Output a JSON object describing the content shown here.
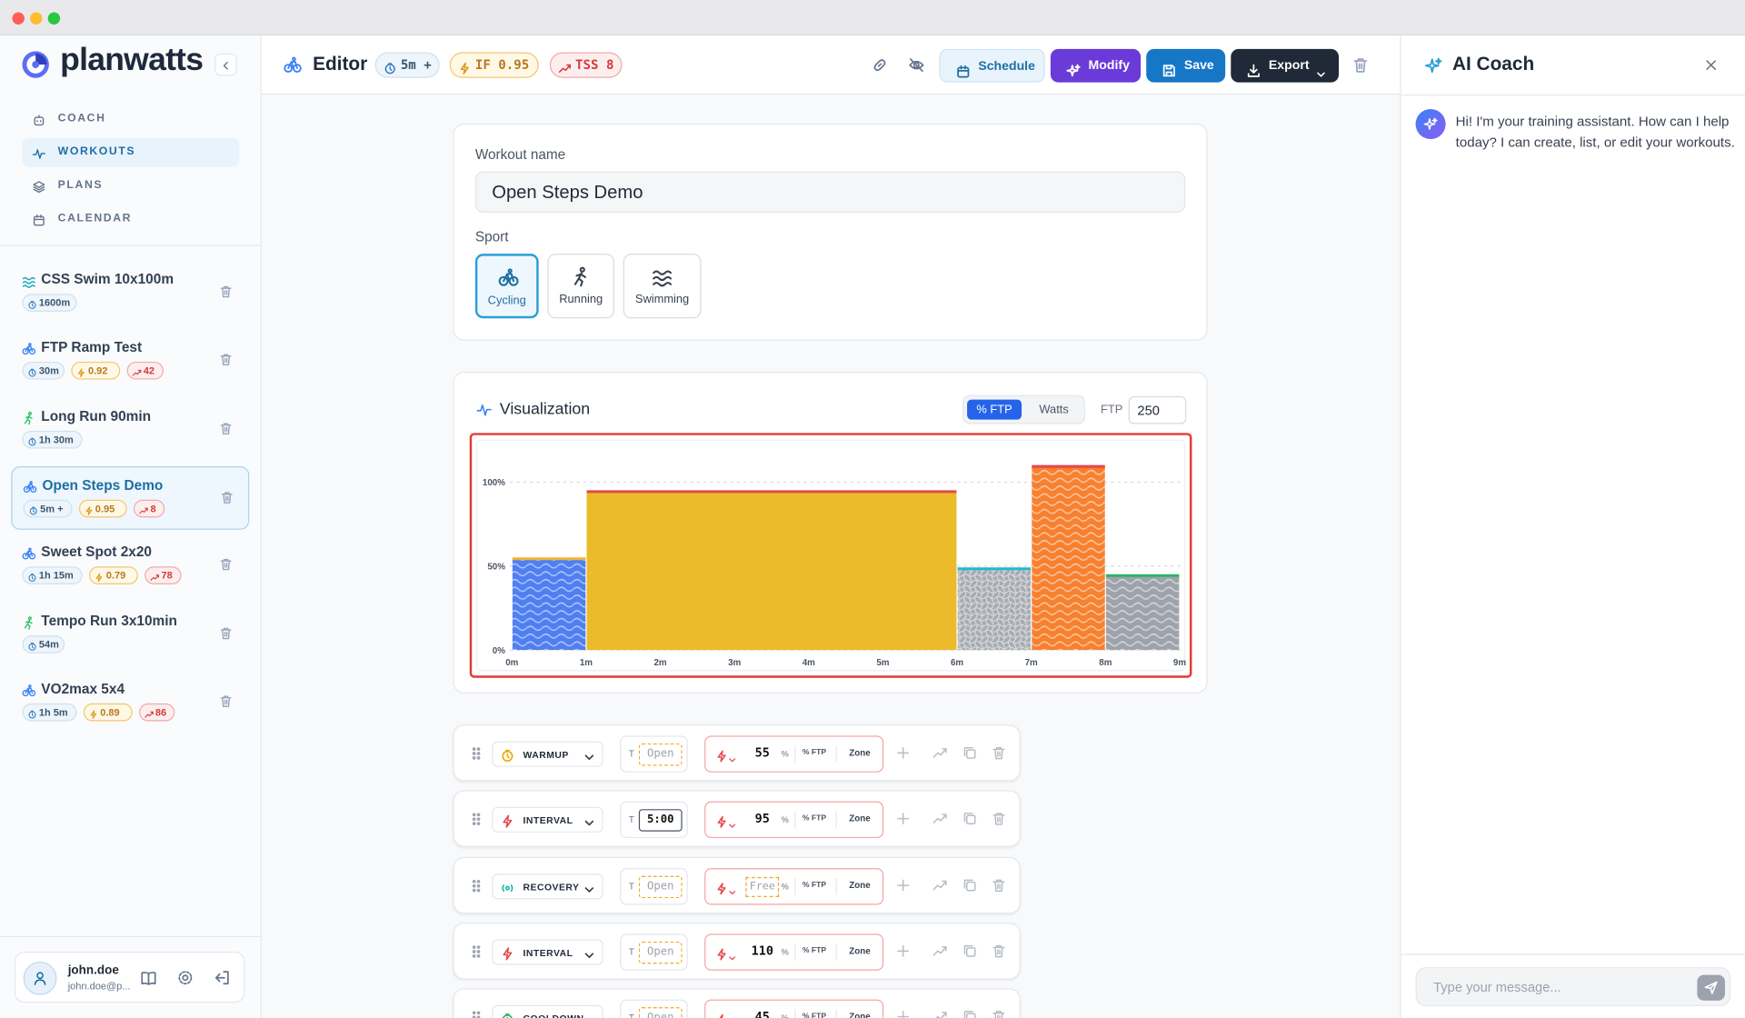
{
  "sidebar": {
    "brand": "planwatts",
    "nav": [
      {
        "label": "COACH"
      },
      {
        "label": "WORKOUTS",
        "active": true
      },
      {
        "label": "PLANS"
      },
      {
        "label": "CALENDAR"
      }
    ],
    "workouts": [
      {
        "name": "CSS Swim 10x100m",
        "sport": "swimming",
        "badges": [
          {
            "kind": "duration",
            "text": "1600m"
          }
        ]
      },
      {
        "name": "FTP Ramp Test",
        "sport": "cycling",
        "badges": [
          {
            "kind": "duration",
            "text": "30m"
          },
          {
            "kind": "if",
            "text": "0.92"
          },
          {
            "kind": "tss",
            "text": "42"
          }
        ]
      },
      {
        "name": "Long Run 90min",
        "sport": "running",
        "badges": [
          {
            "kind": "duration",
            "text": "1h 30m"
          }
        ]
      },
      {
        "name": "Open Steps Demo",
        "sport": "cycling",
        "selected": true,
        "badges": [
          {
            "kind": "duration",
            "text": "5m +"
          },
          {
            "kind": "if",
            "text": "0.95"
          },
          {
            "kind": "tss",
            "text": "8"
          }
        ]
      },
      {
        "name": "Sweet Spot 2x20",
        "sport": "cycling",
        "badges": [
          {
            "kind": "duration",
            "text": "1h 15m"
          },
          {
            "kind": "if",
            "text": "0.79"
          },
          {
            "kind": "tss",
            "text": "78"
          }
        ]
      },
      {
        "name": "Tempo Run 3x10min",
        "sport": "running",
        "badges": [
          {
            "kind": "duration",
            "text": "54m"
          }
        ]
      },
      {
        "name": "VO2max 5x4",
        "sport": "cycling",
        "badges": [
          {
            "kind": "duration",
            "text": "1h 5m"
          },
          {
            "kind": "if",
            "text": "0.89"
          },
          {
            "kind": "tss",
            "text": "86"
          }
        ]
      }
    ],
    "user": {
      "name": "john.doe",
      "email": "john.doe@p..."
    }
  },
  "header": {
    "title": "Editor",
    "badges": [
      {
        "kind": "duration",
        "text": "5m +"
      },
      {
        "kind": "if",
        "text": "IF 0.95"
      },
      {
        "kind": "tss",
        "text": "TSS 8"
      }
    ],
    "buttons": [
      "Schedule",
      "Modify",
      "Save",
      "Export"
    ]
  },
  "form": {
    "name_label": "Workout name",
    "name_value": "Open Steps Demo",
    "sport_label": "Sport",
    "sports": [
      {
        "label": "Cycling",
        "selected": true
      },
      {
        "label": "Running"
      },
      {
        "label": "Swimming"
      }
    ]
  },
  "visualization": {
    "title": "Visualization",
    "modes": [
      {
        "label": "% FTP",
        "active": true
      },
      {
        "label": "Watts"
      }
    ],
    "ftp_label": "FTP",
    "ftp_value": 250,
    "xlim": [
      0,
      9
    ],
    "xticks": [
      {
        "value": 0,
        "label": "0m"
      },
      {
        "value": 1,
        "label": "1m"
      },
      {
        "value": 2,
        "label": "2m"
      },
      {
        "value": 3,
        "label": "3m"
      },
      {
        "value": 4,
        "label": "4m"
      },
      {
        "value": 5,
        "label": "5m"
      },
      {
        "value": 6,
        "label": "6m"
      },
      {
        "value": 7,
        "label": "7m"
      },
      {
        "value": 8,
        "label": "8m"
      },
      {
        "value": 9,
        "label": "9m"
      }
    ],
    "ylim": [
      0,
      124
    ],
    "yticks": [
      {
        "value": 0,
        "label": "0%"
      },
      {
        "value": 50,
        "label": "50%"
      },
      {
        "value": 100,
        "label": "100%"
      }
    ],
    "bars": [
      {
        "start": 0,
        "end": 1,
        "value": 55,
        "color": "#4f7ff0",
        "cap": "#f2b233",
        "pattern": "wave"
      },
      {
        "start": 1,
        "end": 6,
        "value": 95,
        "color": "#ebbb2b",
        "cap": "#e5484d",
        "pattern": "none"
      },
      {
        "start": 6,
        "end": 7,
        "value": 49,
        "color": "#a7abb2",
        "cap": "#22b8cf",
        "pattern": "weave"
      },
      {
        "start": 7,
        "end": 8,
        "value": 110,
        "color": "#f7812f",
        "cap": "#e5484d",
        "pattern": "wave"
      },
      {
        "start": 8,
        "end": 9,
        "value": 45,
        "color": "#9ea3ab",
        "cap": "#2fb36b",
        "pattern": "wave"
      }
    ]
  },
  "steps": [
    {
      "type": "WARMUP",
      "color": "#f0a500",
      "time_label": "T",
      "time": "Open",
      "power": 55,
      "unit": "%",
      "mode": "% FTP",
      "zone": "Zone"
    },
    {
      "type": "INTERVAL",
      "color": "#e5484d",
      "time_label": "T",
      "time": "5:00",
      "power": 95,
      "unit": "%",
      "mode": "% FTP",
      "zone": "Zone"
    },
    {
      "type": "RECOVERY",
      "color": "#14b8a6",
      "time_label": "T",
      "time": "Open",
      "power": "Free",
      "unit": "%",
      "mode": "% FTP",
      "zone": "Zone"
    },
    {
      "type": "INTERVAL",
      "color": "#e5484d",
      "time_label": "T",
      "time": "Open",
      "power": 110,
      "unit": "%",
      "mode": "% FTP",
      "zone": "Zone"
    },
    {
      "type": "COOLDOWN",
      "color": "#2fb36b",
      "time_label": "T",
      "time": "Open",
      "power": 45,
      "unit": "%",
      "mode": "% FTP",
      "zone": "Zone"
    }
  ],
  "coach": {
    "title": "AI Coach",
    "message": "Hi! I'm your training assistant. How can I help today? I can create, list, or edit your workouts.",
    "placeholder": "Type your message..."
  }
}
